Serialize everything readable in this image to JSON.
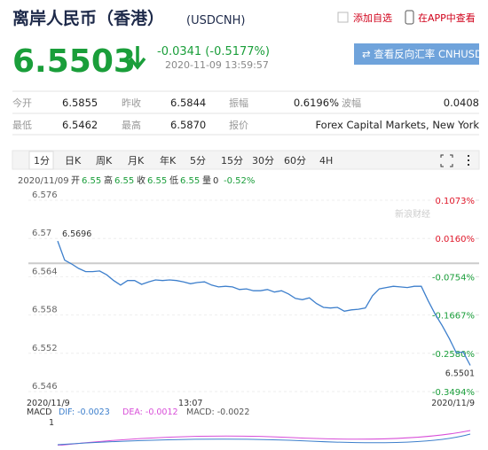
{
  "header": {
    "title": "离岸人民币（香港）",
    "code": "(USDCNH)",
    "add": "添加自选",
    "app": "在APP中查看",
    "price": "6.5503",
    "change": "-0.0341 (-0.5177%)",
    "time": "2020-11-09 13:59:57",
    "reverse": "查看反向汇率 CNHUSD"
  },
  "stats": {
    "rows": [
      [
        {
          "label": "今开",
          "value": "6.5855"
        },
        {
          "label": "昨收",
          "value": "6.5844"
        },
        {
          "label": "振幅",
          "value": "0.6196%"
        },
        {
          "label": "波幅",
          "value": "0.0408"
        }
      ],
      [
        {
          "label": "最低",
          "value": "6.5462"
        },
        {
          "label": "最高",
          "value": "6.5870"
        },
        {
          "label": "报价",
          "value": "Forex Capital Markets, New York"
        }
      ]
    ]
  },
  "tabs": [
    "1分",
    "日K",
    "周K",
    "月K",
    "年K",
    "5分",
    "15分",
    "30分",
    "60分",
    "4H"
  ],
  "info": {
    "date": "2020/11/09",
    "fields": [
      {
        "label": "开",
        "value": "6.55"
      },
      {
        "label": "高",
        "value": "6.55"
      },
      {
        "label": "收",
        "value": "6.55"
      },
      {
        "label": "低",
        "value": "6.55"
      },
      {
        "label": "量",
        "value": "0"
      }
    ],
    "change": "-0.52%"
  },
  "chart_data": {
    "type": "line",
    "color": "#3d7fcc",
    "watermark": "新浪财经",
    "categories": [
      "2020/11/9",
      null,
      null,
      null,
      null,
      null,
      null,
      null,
      null,
      null,
      null,
      null,
      null,
      null,
      null,
      null,
      null,
      null,
      null,
      "13:07",
      null,
      null,
      null,
      null,
      null,
      null,
      null,
      null,
      null,
      null,
      null,
      null,
      null,
      null,
      null,
      null,
      null,
      null,
      null,
      null,
      null,
      null,
      null,
      null,
      null,
      null,
      null,
      null,
      null,
      null,
      null,
      null,
      null,
      null,
      null,
      null,
      null,
      null,
      null,
      "2020/11/9"
    ],
    "values": [
      6.5696,
      6.5666,
      6.566,
      6.5653,
      6.5648,
      6.5648,
      6.5649,
      6.5643,
      6.5634,
      6.5627,
      6.5634,
      6.5634,
      6.5628,
      6.5632,
      6.5635,
      6.5634,
      6.5635,
      6.5634,
      6.5632,
      6.5629,
      6.5631,
      6.5632,
      6.5627,
      6.5624,
      6.5625,
      6.5624,
      6.562,
      6.5621,
      6.5618,
      6.5618,
      6.562,
      6.5616,
      6.5618,
      6.5613,
      6.5606,
      6.5604,
      6.5607,
      6.5598,
      6.5592,
      6.5591,
      6.5592,
      6.5586,
      6.5588,
      6.5589,
      6.5591,
      6.561,
      6.5621,
      6.5623,
      6.5625,
      6.5624,
      6.5623,
      6.5625,
      6.5625,
      6.5602,
      6.5581,
      6.5563,
      6.5543,
      6.5521,
      6.5522,
      6.5501
    ],
    "reference_line": 6.5661,
    "ylim": [
      6.546,
      6.576
    ],
    "yticks": [
      6.576,
      6.57,
      6.564,
      6.558,
      6.552,
      6.546
    ],
    "y2lim": [
      -0.3494,
      0.1073
    ],
    "y2ticks": [
      {
        "value": 0.1073,
        "label": "0.1073%"
      },
      {
        "value": 0.016,
        "label": "0.0160%"
      },
      {
        "value": -0.0754,
        "label": "-0.0754%"
      },
      {
        "value": -0.1667,
        "label": "-0.1667%"
      },
      {
        "value": -0.258,
        "label": "-0.2580%"
      },
      {
        "value": -0.3494,
        "label": "-0.3494%"
      }
    ],
    "grid": true
  },
  "macd": {
    "title": "MACD",
    "items": [
      {
        "name": "DIF:",
        "value": "-0.0023"
      },
      {
        "name": "DEA:",
        "value": "-0.0012"
      },
      {
        "name": "MACD:",
        "value": "-0.0022"
      }
    ],
    "axis": "1"
  }
}
